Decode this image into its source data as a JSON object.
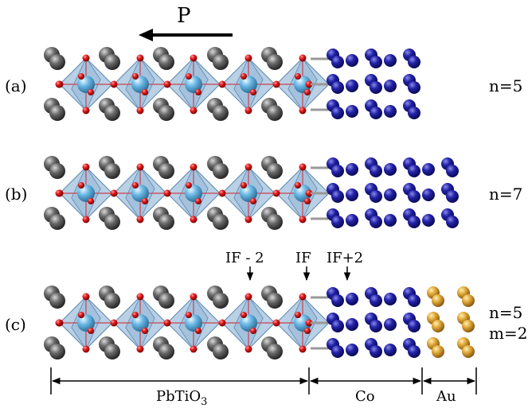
{
  "polarization": {
    "label": "P"
  },
  "panels": [
    {
      "id": "a",
      "label": "(a)",
      "annotation": [
        "n=5"
      ],
      "co_layers": 5,
      "au_layers": 0
    },
    {
      "id": "b",
      "label": "(b)",
      "annotation": [
        "n=7"
      ],
      "co_layers": 7,
      "au_layers": 0
    },
    {
      "id": "c",
      "label": "(c)",
      "annotation": [
        "n=5",
        "m=2"
      ],
      "co_layers": 5,
      "au_layers": 2
    }
  ],
  "markers": {
    "if_minus_2": "IF - 2",
    "if": "IF",
    "if_plus_2": "IF+2"
  },
  "regions": {
    "pto": {
      "text": "PbTiO",
      "sub": "3"
    },
    "co": "Co",
    "au": "Au"
  },
  "colors": {
    "pb": "#555555",
    "o": "#d01818",
    "ti": "#6ab7e4",
    "octahedron": "#7fa9cf",
    "co": "#1c1c9a",
    "au": "#d8a632",
    "bond": "#c25a6a"
  }
}
